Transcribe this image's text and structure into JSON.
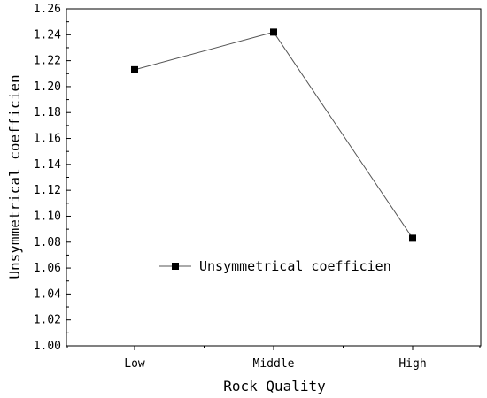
{
  "chart_data": {
    "type": "line",
    "title": "",
    "xlabel": "Rock Quality",
    "ylabel": "Unsymmetrical coefficien",
    "categories": [
      "Low",
      "Middle",
      "High"
    ],
    "series": [
      {
        "name": "Unsymmetrical coefficien",
        "values": [
          1.213,
          1.242,
          1.083
        ]
      }
    ],
    "ylim": [
      1.0,
      1.26
    ],
    "y_ticks": [
      "1.00",
      "1.02",
      "1.04",
      "1.06",
      "1.08",
      "1.10",
      "1.12",
      "1.14",
      "1.16",
      "1.18",
      "1.20",
      "1.22",
      "1.24",
      "1.26"
    ],
    "grid": false,
    "legend_position": "center-left",
    "marker": "square",
    "colors": {
      "line": "#555555",
      "marker": "#000000",
      "axis": "#000000"
    }
  }
}
